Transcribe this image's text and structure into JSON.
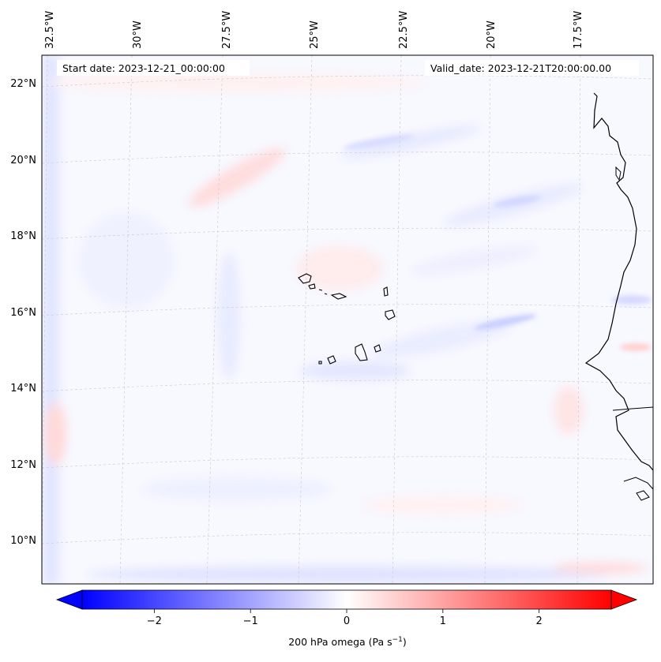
{
  "map": {
    "field": "200 hPa omega",
    "start_label": "Start date: 2023-12-21_00:00:00",
    "valid_label": "Valid_date: 2023-12-21T20:00:00.00",
    "lon_labels": [
      "32.5°W",
      "30°W",
      "27.5°W",
      "25°W",
      "22.5°W",
      "20°W",
      "17.5°W"
    ],
    "lat_labels": [
      "22°N",
      "20°N",
      "18°N",
      "16°N",
      "14°N",
      "12°N",
      "10°N"
    ],
    "colors": {
      "negative": "#0000ff",
      "zero": "#ffffff",
      "positive": "#ff0000",
      "coast": "#000000"
    }
  },
  "colorbar": {
    "label": "200 hPa omega (Pa s",
    "unit_exponent": "−1",
    "label_close": ")",
    "min": -2.75,
    "max": 2.75,
    "ticks": [
      -2,
      -1,
      0,
      1,
      2
    ],
    "tick_labels": [
      "−2",
      "−1",
      "0",
      "1",
      "2"
    ]
  }
}
